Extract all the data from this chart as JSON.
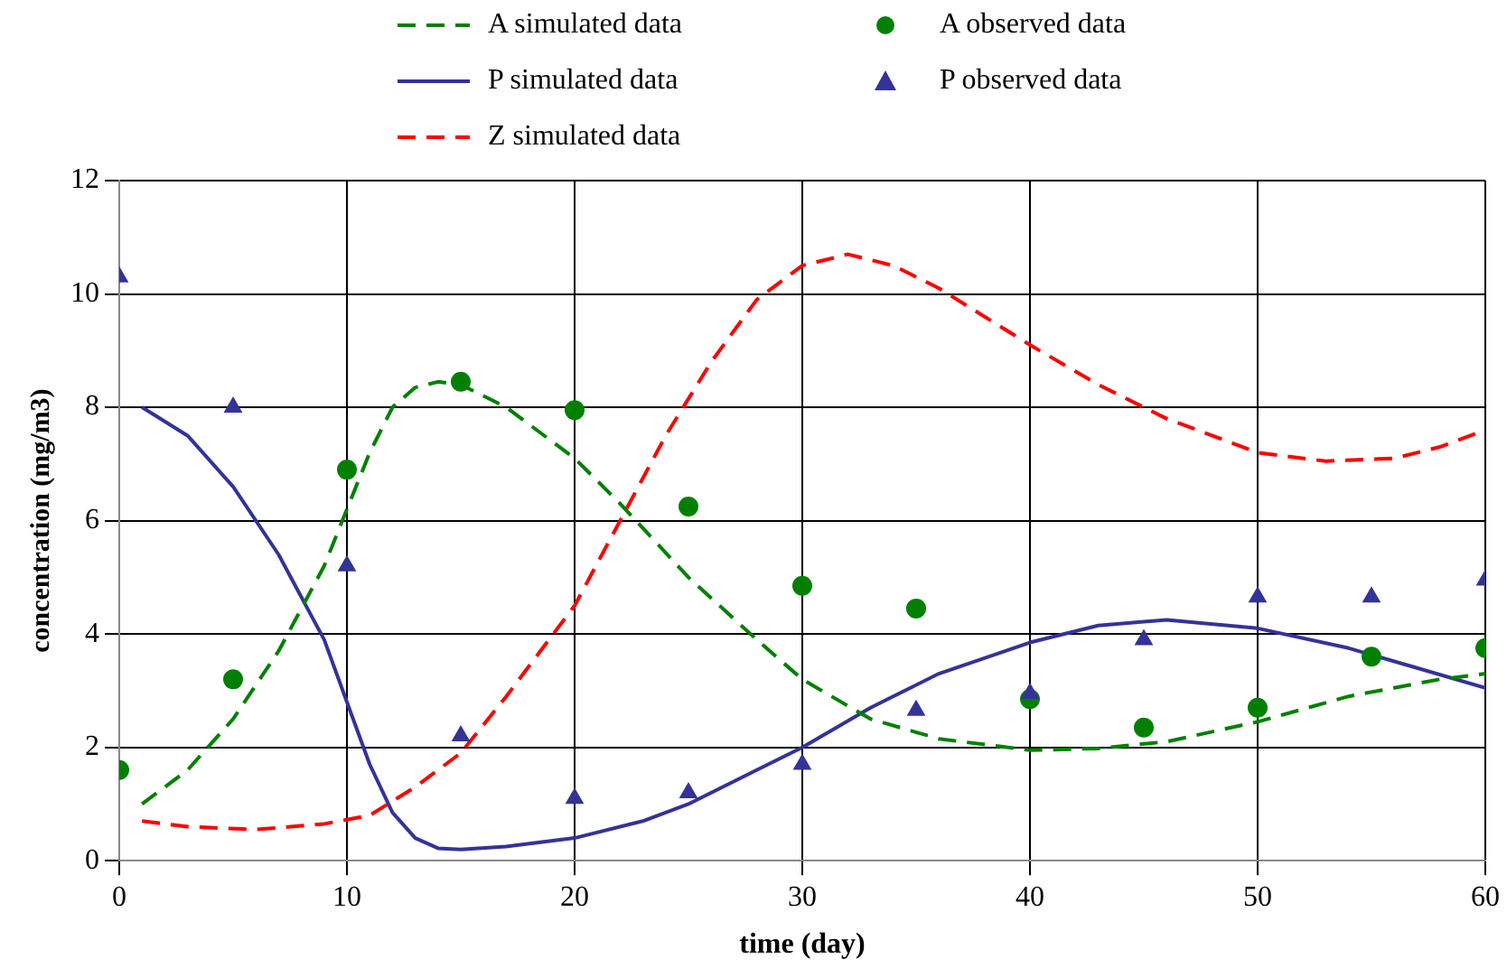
{
  "chart_data": {
    "type": "line",
    "xlabel": "time (day)",
    "ylabel": "concentration (mg/m3)",
    "xlim": [
      0,
      60
    ],
    "xticks": [
      0,
      10,
      20,
      30,
      40,
      50,
      60
    ],
    "ylim": [
      0,
      12
    ],
    "yticks": [
      0,
      2,
      4,
      6,
      8,
      10,
      12
    ],
    "grid": true,
    "legend": "top",
    "series": [
      {
        "name": "A simulated data",
        "type": "line",
        "color": "#008000",
        "line_style": "dashed",
        "marker": "none",
        "x": [
          1,
          3,
          5,
          7,
          9,
          10,
          11,
          12,
          13,
          14,
          15,
          17,
          20,
          22,
          25,
          28,
          30,
          33,
          36,
          40,
          43,
          46,
          50,
          54,
          58,
          60
        ],
        "values": [
          1.0,
          1.6,
          2.5,
          3.7,
          5.2,
          6.2,
          7.2,
          8.0,
          8.35,
          8.45,
          8.4,
          8.0,
          7.1,
          6.3,
          5.0,
          3.9,
          3.2,
          2.5,
          2.15,
          1.95,
          1.98,
          2.1,
          2.45,
          2.9,
          3.2,
          3.3
        ]
      },
      {
        "name": "A observed data",
        "type": "scatter",
        "color": "#008000",
        "marker": "circle",
        "x": [
          0,
          5,
          10,
          15,
          20,
          25,
          30,
          35,
          40,
          45,
          50,
          55,
          60
        ],
        "values": [
          1.6,
          3.2,
          6.9,
          8.45,
          7.95,
          6.25,
          4.85,
          4.45,
          2.85,
          2.35,
          2.7,
          3.6,
          3.75
        ]
      },
      {
        "name": "P simulated data",
        "type": "line",
        "color": "#333399",
        "line_style": "solid",
        "marker": "none",
        "x": [
          1,
          3,
          5,
          7,
          9,
          10,
          11,
          12,
          13,
          14,
          15,
          17,
          20,
          23,
          25,
          28,
          30,
          33,
          36,
          40,
          43,
          46,
          50,
          54,
          57,
          60
        ],
        "values": [
          8.0,
          7.5,
          6.6,
          5.4,
          3.9,
          2.8,
          1.7,
          0.85,
          0.4,
          0.22,
          0.2,
          0.25,
          0.4,
          0.7,
          1.0,
          1.6,
          2.0,
          2.7,
          3.3,
          3.85,
          4.15,
          4.25,
          4.1,
          3.75,
          3.4,
          3.05
        ]
      },
      {
        "name": "P observed data",
        "type": "scatter",
        "color": "#333399",
        "marker": "triangle",
        "x": [
          0,
          5,
          10,
          15,
          20,
          25,
          30,
          35,
          40,
          45,
          50,
          55,
          60
        ],
        "values": [
          10.3,
          8.0,
          5.2,
          2.2,
          1.1,
          1.2,
          1.7,
          2.65,
          2.95,
          3.9,
          4.65,
          4.65,
          4.95
        ]
      },
      {
        "name": "Z simulated data",
        "type": "line",
        "color": "#ff0000",
        "line_style": "dashed",
        "marker": "none",
        "x": [
          1,
          3,
          6,
          9,
          11,
          13,
          15,
          17,
          20,
          22,
          24,
          26,
          28,
          30,
          32,
          34,
          36,
          40,
          43,
          46,
          50,
          53,
          56,
          58,
          60
        ],
        "values": [
          0.7,
          0.6,
          0.55,
          0.65,
          0.8,
          1.3,
          1.9,
          2.9,
          4.5,
          6.0,
          7.5,
          8.8,
          9.9,
          10.5,
          10.7,
          10.5,
          10.1,
          9.1,
          8.4,
          7.8,
          7.2,
          7.05,
          7.1,
          7.3,
          7.6
        ]
      }
    ]
  }
}
